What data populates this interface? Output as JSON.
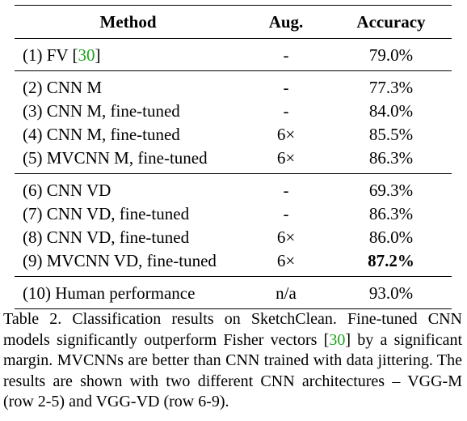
{
  "table": {
    "headers": {
      "method": "Method",
      "aug": "Aug.",
      "accuracy": "Accuracy"
    },
    "groups": [
      [
        {
          "method_pre": "(1) FV [",
          "cite": "30",
          "method_post": "]",
          "aug": "-",
          "accuracy": "79.0%"
        }
      ],
      [
        {
          "method": "(2) CNN M",
          "aug": "-",
          "accuracy": "77.3%"
        },
        {
          "method": "(3) CNN M, fine-tuned",
          "aug": "-",
          "accuracy": "84.0%"
        },
        {
          "method": "(4) CNN M, fine-tuned",
          "aug": "6×",
          "accuracy": "85.5%"
        },
        {
          "method": "(5) MVCNN M, fine-tuned",
          "aug": "6×",
          "accuracy": "86.3%"
        }
      ],
      [
        {
          "method": "(6) CNN VD",
          "aug": "-",
          "accuracy": "69.3%"
        },
        {
          "method": "(7) CNN VD, fine-tuned",
          "aug": "-",
          "accuracy": "86.3%"
        },
        {
          "method": "(8) CNN VD, fine-tuned",
          "aug": "6×",
          "accuracy": "86.0%"
        },
        {
          "method": "(9) MVCNN VD, fine-tuned",
          "aug": "6×",
          "accuracy": "87.2%"
        }
      ],
      [
        {
          "method": "(10) Human performance",
          "aug": "n/a",
          "accuracy": "93.0%"
        }
      ]
    ]
  },
  "caption": {
    "part1": "Table 2. Classification results on SketchClean.  Fine-tuned CNN models significantly outperform Fisher vectors [",
    "cite": "30",
    "part2": "] by a significant margin.  MVCNNs are better than CNN trained with data jittering. The results are shown with two different CNN architectures – VGG-M (row 2-5) and VGG-VD (row 6-9)."
  },
  "colors": {
    "citation": "#19a319"
  }
}
